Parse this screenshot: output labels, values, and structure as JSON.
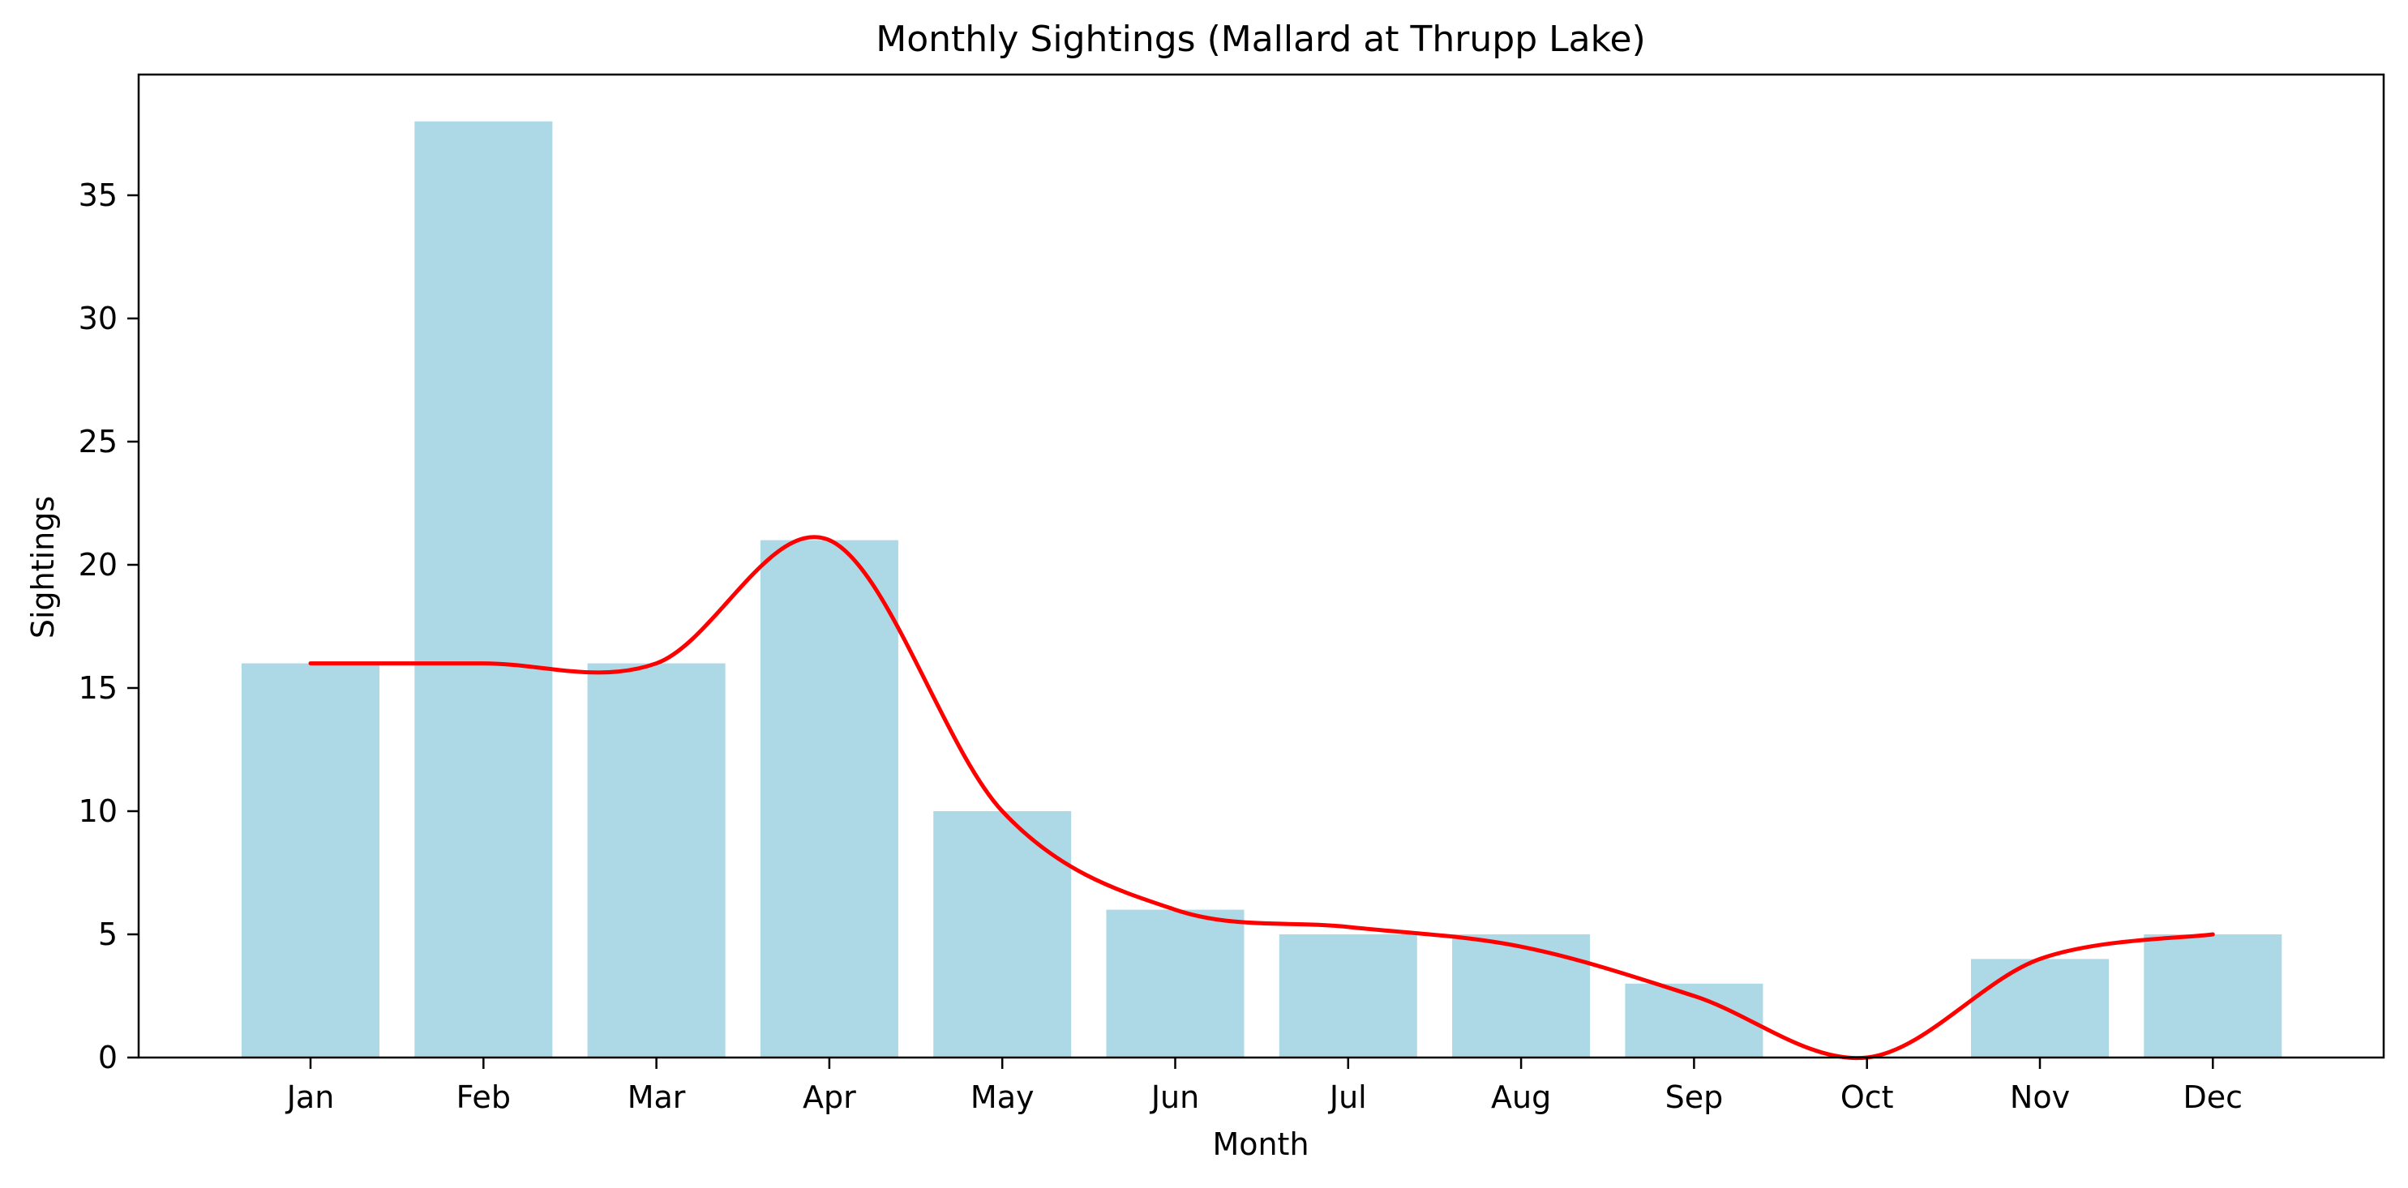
{
  "chart_data": {
    "type": "bar",
    "title": "Monthly Sightings (Mallard at Thrupp Lake)",
    "xlabel": "Month",
    "ylabel": "Sightings",
    "categories": [
      "Jan",
      "Feb",
      "Mar",
      "Apr",
      "May",
      "Jun",
      "Jul",
      "Aug",
      "Sep",
      "Oct",
      "Nov",
      "Dec"
    ],
    "values": [
      16,
      38,
      16,
      21,
      10,
      6,
      5,
      5,
      3,
      0,
      4,
      5
    ],
    "smoothed_line": [
      16,
      16,
      16,
      21,
      10,
      6,
      5.3,
      4.5,
      2.5,
      0,
      4,
      5
    ],
    "ylim": [
      0,
      39.9
    ],
    "yticks": [
      0,
      5,
      10,
      15,
      20,
      25,
      30,
      35
    ],
    "grid": false,
    "colors": {
      "bar": "#add8e6",
      "line": "#ff0000"
    }
  }
}
